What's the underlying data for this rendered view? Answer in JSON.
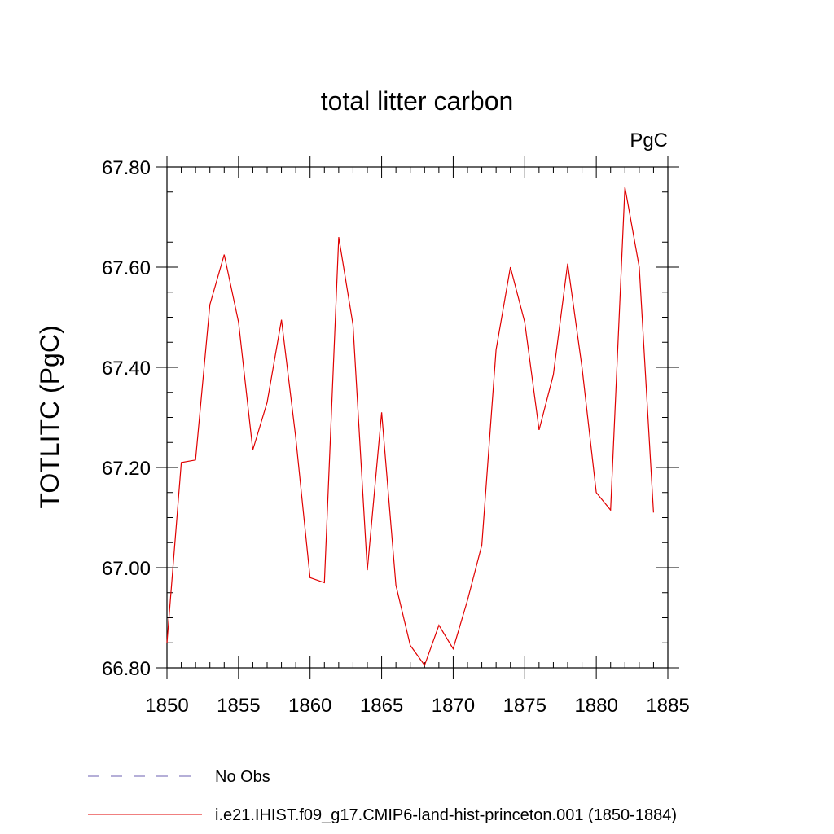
{
  "chart_data": {
    "type": "line",
    "title": "total litter carbon",
    "units_label": "PgC",
    "ylabel": "TOTLITC  (PgC)",
    "xlabel": "",
    "xlim": [
      1850,
      1885
    ],
    "ylim": [
      66.8,
      67.8
    ],
    "x_ticks": [
      "1850",
      "1855",
      "1860",
      "1865",
      "1870",
      "1875",
      "1880",
      "1885"
    ],
    "y_ticks": [
      "66.80",
      "67.00",
      "67.20",
      "67.40",
      "67.60",
      "67.80"
    ],
    "grid": false,
    "legend_position": "bottom-left",
    "legend": [
      {
        "label": "No Obs",
        "color": "#6b5fb0",
        "style": "dashed"
      },
      {
        "label": "i.e21.IHIST.f09_g17.CMIP6-land-hist-princeton.001 (1850-1884)",
        "color": "#e00000",
        "style": "solid"
      }
    ],
    "series": [
      {
        "name": "i.e21.IHIST.f09_g17.CMIP6-land-hist-princeton.001 (1850-1884)",
        "color": "#e00000",
        "x": [
          1850,
          1851,
          1852,
          1853,
          1854,
          1855,
          1856,
          1857,
          1858,
          1859,
          1860,
          1861,
          1862,
          1863,
          1864,
          1865,
          1866,
          1867,
          1868,
          1869,
          1870,
          1871,
          1872,
          1873,
          1874,
          1875,
          1876,
          1877,
          1878,
          1879,
          1880,
          1881,
          1882,
          1883,
          1884
        ],
        "values": [
          66.85,
          67.21,
          67.215,
          67.525,
          67.625,
          67.49,
          67.235,
          67.33,
          67.495,
          67.26,
          66.98,
          66.97,
          67.66,
          67.485,
          66.995,
          67.31,
          66.965,
          66.845,
          66.805,
          66.885,
          66.838,
          66.935,
          67.045,
          67.435,
          67.6,
          67.49,
          67.275,
          67.385,
          67.607,
          67.4,
          67.15,
          67.115,
          67.76,
          67.6,
          67.11
        ]
      }
    ]
  }
}
